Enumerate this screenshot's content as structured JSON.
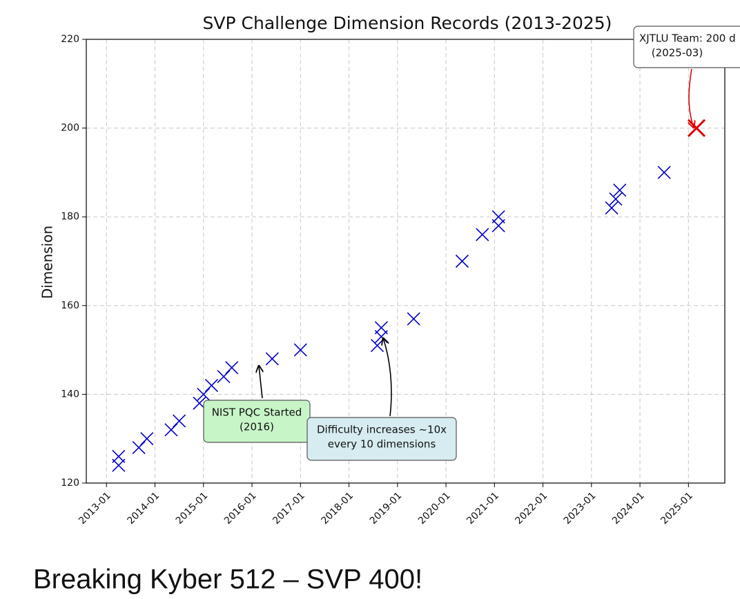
{
  "chart_data": {
    "type": "scatter",
    "title": "SVP Challenge Dimension Records (2013-2025)",
    "y_label": "Dimension",
    "series": [
      {
        "color": "#0000cc",
        "x": [
          "2013-04",
          "2013-04",
          "2013-09",
          "2013-11",
          "2014-05",
          "2014-07",
          "2014-12",
          "2015-01",
          "2015-03",
          "2015-06",
          "2015-08",
          "2016-06",
          "2017-01",
          "2018-08",
          "2018-09",
          "2018-09",
          "2019-05",
          "2020-05",
          "2020-10",
          "2021-02",
          "2021-02",
          "2023-06",
          "2023-07",
          "2023-08",
          "2024-07"
        ],
        "values": [
          124,
          126,
          128,
          130,
          132,
          134,
          138,
          140,
          142,
          144,
          146,
          148,
          150,
          151,
          153,
          155,
          157,
          170,
          176,
          178,
          180,
          182,
          184,
          186,
          190
        ]
      },
      {
        "color": "#e00000",
        "x": [
          "2025-03"
        ],
        "values": [
          200
        ]
      }
    ],
    "xlim": [
      "2012-08",
      "2025-10"
    ],
    "xticks": [
      "2013-01",
      "2014-01",
      "2015-01",
      "2016-01",
      "2017-01",
      "2018-01",
      "2019-01",
      "2020-01",
      "2021-01",
      "2022-01",
      "2023-01",
      "2024-01",
      "2025-01"
    ],
    "ylim": [
      120,
      220
    ],
    "yticks": [
      120,
      140,
      160,
      180,
      200,
      220
    ],
    "grid": true,
    "annotations": [
      {
        "lines": [
          "NIST PQC Started",
          "(2016)"
        ],
        "color": "#c8f5c8"
      },
      {
        "lines": [
          "Difficulty increases ~10x",
          "every 10 dimensions"
        ],
        "color": "#d6ecf0"
      },
      {
        "lines": [
          "XJTLU Team: 200 d",
          "(2025-03)"
        ],
        "color": "#ffffff"
      }
    ]
  },
  "slide": {
    "heading": "Breaking Kyber 512 – SVP 400!"
  }
}
